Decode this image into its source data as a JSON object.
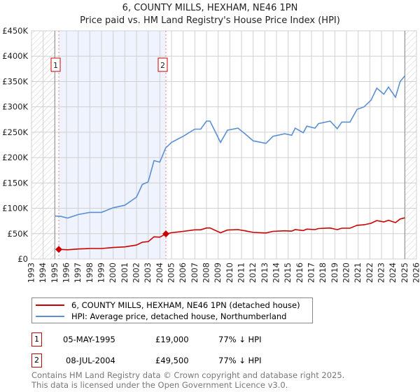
{
  "chart_data": {
    "type": "line",
    "title": "6, COUNTY MILLS, HEXHAM, NE46 1PN",
    "subtitle": "Price paid vs. HM Land Registry's House Price Index (HPI)",
    "xlim": [
      1993,
      2026
    ],
    "ylim": [
      0,
      450000
    ],
    "x_ticks": [
      "1993",
      "1994",
      "1995",
      "1996",
      "1997",
      "1998",
      "1999",
      "2000",
      "2001",
      "2002",
      "2003",
      "2004",
      "2005",
      "2006",
      "2007",
      "2008",
      "2009",
      "2010",
      "2011",
      "2012",
      "2013",
      "2014",
      "2015",
      "2016",
      "2017",
      "2018",
      "2019",
      "2020",
      "2021",
      "2022",
      "2023",
      "2024",
      "2025",
      "2026"
    ],
    "y_ticks": [
      {
        "v": 0,
        "label": "£0"
      },
      {
        "v": 50000,
        "label": "£50K"
      },
      {
        "v": 100000,
        "label": "£100K"
      },
      {
        "v": 150000,
        "label": "£150K"
      },
      {
        "v": 200000,
        "label": "£200K"
      },
      {
        "v": 250000,
        "label": "£250K"
      },
      {
        "v": 300000,
        "label": "£300K"
      },
      {
        "v": 350000,
        "label": "£350K"
      },
      {
        "v": 400000,
        "label": "£400K"
      },
      {
        "v": 450000,
        "label": "£450K"
      }
    ],
    "grid": true,
    "hatched_ranges": [
      [
        1993,
        1995
      ],
      [
        2025,
        2026
      ]
    ],
    "series": [
      {
        "name": "HPI",
        "color": "#5b8fd4",
        "points": [
          [
            1995,
            84800
          ],
          [
            1995.5,
            84000
          ],
          [
            1996.1,
            80700
          ],
          [
            1997,
            87600
          ],
          [
            1998,
            92000
          ],
          [
            1999,
            92000
          ],
          [
            2000,
            101000
          ],
          [
            2001,
            106000
          ],
          [
            2002,
            122000
          ],
          [
            2002.5,
            147000
          ],
          [
            2003,
            152000
          ],
          [
            2003.5,
            194000
          ],
          [
            2004,
            191000
          ],
          [
            2004.5,
            219000
          ],
          [
            2005,
            230000
          ],
          [
            2006,
            242000
          ],
          [
            2007,
            256000
          ],
          [
            2007.5,
            256000
          ],
          [
            2008,
            272000
          ],
          [
            2008.3,
            272000
          ],
          [
            2009.2,
            230000
          ],
          [
            2009.8,
            254000
          ],
          [
            2010.7,
            258000
          ],
          [
            2011.3,
            247000
          ],
          [
            2012,
            233000
          ],
          [
            2013.1,
            228000
          ],
          [
            2013.7,
            242000
          ],
          [
            2014.7,
            247000
          ],
          [
            2015.3,
            244000
          ],
          [
            2015.6,
            258000
          ],
          [
            2016.3,
            249000
          ],
          [
            2016.6,
            262000
          ],
          [
            2017.3,
            258000
          ],
          [
            2017.6,
            267000
          ],
          [
            2018.6,
            272000
          ],
          [
            2019.2,
            257000
          ],
          [
            2019.6,
            270000
          ],
          [
            2020.3,
            270000
          ],
          [
            2020.9,
            295000
          ],
          [
            2021.5,
            300000
          ],
          [
            2022.1,
            313000
          ],
          [
            2022.6,
            337000
          ],
          [
            2023.2,
            325000
          ],
          [
            2023.6,
            339000
          ],
          [
            2024.2,
            319000
          ],
          [
            2024.6,
            350000
          ],
          [
            2025,
            361000
          ]
        ]
      },
      {
        "name": "Price paid",
        "color": "#cc0000",
        "points": [
          [
            1995.34,
            19000
          ],
          [
            1995.5,
            18900
          ],
          [
            1996.1,
            18200
          ],
          [
            1997,
            19700
          ],
          [
            1998,
            20700
          ],
          [
            1999,
            20700
          ],
          [
            2000,
            22700
          ],
          [
            2001,
            23900
          ],
          [
            2002,
            27500
          ],
          [
            2002.5,
            33100
          ],
          [
            2003,
            34200
          ],
          [
            2003.5,
            43700
          ],
          [
            2004,
            43000
          ],
          [
            2004.52,
            49500
          ],
          [
            2005,
            51800
          ],
          [
            2006,
            54500
          ],
          [
            2007,
            57600
          ],
          [
            2007.5,
            57600
          ],
          [
            2008,
            61200
          ],
          [
            2008.3,
            61200
          ],
          [
            2009.2,
            51800
          ],
          [
            2009.8,
            57200
          ],
          [
            2010.7,
            58000
          ],
          [
            2011.3,
            55600
          ],
          [
            2012,
            52400
          ],
          [
            2013.1,
            51300
          ],
          [
            2013.7,
            54500
          ],
          [
            2014.7,
            55600
          ],
          [
            2015.3,
            54900
          ],
          [
            2015.6,
            58000
          ],
          [
            2016.3,
            56000
          ],
          [
            2016.6,
            59000
          ],
          [
            2017.3,
            58000
          ],
          [
            2017.6,
            60000
          ],
          [
            2018.6,
            61200
          ],
          [
            2019.2,
            57800
          ],
          [
            2019.6,
            60800
          ],
          [
            2020.3,
            60800
          ],
          [
            2020.9,
            66400
          ],
          [
            2021.5,
            67500
          ],
          [
            2022.1,
            70400
          ],
          [
            2022.6,
            75800
          ],
          [
            2023.2,
            73100
          ],
          [
            2023.6,
            76300
          ],
          [
            2024.2,
            71800
          ],
          [
            2024.6,
            78800
          ],
          [
            2025,
            81200
          ]
        ]
      }
    ],
    "sales": [
      {
        "id": "1",
        "x": 1995.34,
        "y": 19000
      },
      {
        "id": "2",
        "x": 2004.52,
        "y": 49500
      }
    ]
  },
  "legend": [
    {
      "label": "6, COUNTY MILLS, HEXHAM, NE46 1PN (detached house)",
      "color": "#cc0000"
    },
    {
      "label": "HPI: Average price, detached house, Northumberland",
      "color": "#5b8fd4"
    }
  ],
  "transactions": [
    {
      "id": "1",
      "date": "05-MAY-1995",
      "price": "£19,000",
      "hpi": "77% ↓ HPI"
    },
    {
      "id": "2",
      "date": "08-JUL-2004",
      "price": "£49,500",
      "hpi": "77% ↓ HPI"
    }
  ],
  "footer": [
    "Contains HM Land Registry data © Crown copyright and database right 2025.",
    "This data is licensed under the Open Government Licence v3.0."
  ]
}
